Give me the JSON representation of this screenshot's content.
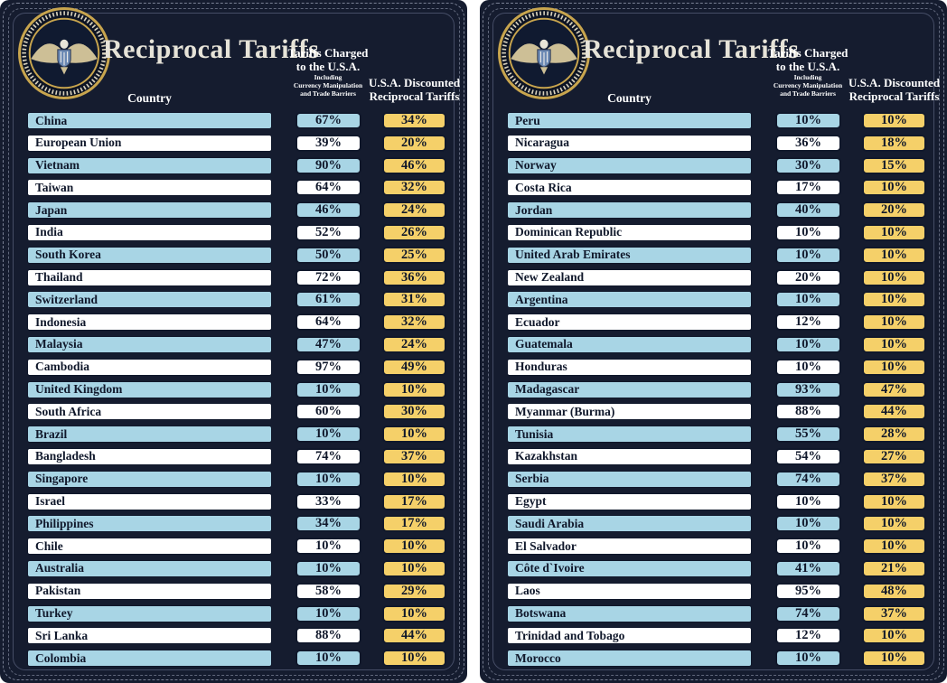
{
  "header": {
    "title": "Reciprocal Tariffs",
    "country_col": "Country",
    "charged_col_line1": "Tariffs Charged",
    "charged_col_line2": "to the U.S.A.",
    "charged_sub_line1": "Including",
    "charged_sub_line2": "Currency Manipulation",
    "charged_sub_line3": "and Trade Barriers",
    "discount_col_line1": "U.S.A. Discounted",
    "discount_col_line2": "Reciprocal Tariffs"
  },
  "colors": {
    "bg_navy": "#151c2f",
    "row_blue": "#a8d5e5",
    "row_white": "#ffffff",
    "discount_yellow": "#f5d069",
    "ink_dark": "#10182b",
    "title_cream": "#e6e3d8",
    "stitch_gray": "#8b92a6",
    "seal_gold": "#c8a54e"
  },
  "chart_data": [
    {
      "type": "table",
      "title": "Reciprocal Tariffs",
      "columns": [
        "Country",
        "Tariffs Charged to the U.S.A. Including Currency Manipulation and Trade Barriers",
        "U.S.A. Discounted Reciprocal Tariffs"
      ],
      "rows": [
        {
          "country": "China",
          "charged": "67%",
          "discount": "34%"
        },
        {
          "country": "European Union",
          "charged": "39%",
          "discount": "20%"
        },
        {
          "country": "Vietnam",
          "charged": "90%",
          "discount": "46%"
        },
        {
          "country": "Taiwan",
          "charged": "64%",
          "discount": "32%"
        },
        {
          "country": "Japan",
          "charged": "46%",
          "discount": "24%"
        },
        {
          "country": "India",
          "charged": "52%",
          "discount": "26%"
        },
        {
          "country": "South Korea",
          "charged": "50%",
          "discount": "25%"
        },
        {
          "country": "Thailand",
          "charged": "72%",
          "discount": "36%"
        },
        {
          "country": "Switzerland",
          "charged": "61%",
          "discount": "31%"
        },
        {
          "country": "Indonesia",
          "charged": "64%",
          "discount": "32%"
        },
        {
          "country": "Malaysia",
          "charged": "47%",
          "discount": "24%"
        },
        {
          "country": "Cambodia",
          "charged": "97%",
          "discount": "49%"
        },
        {
          "country": "United Kingdom",
          "charged": "10%",
          "discount": "10%"
        },
        {
          "country": "South Africa",
          "charged": "60%",
          "discount": "30%"
        },
        {
          "country": "Brazil",
          "charged": "10%",
          "discount": "10%"
        },
        {
          "country": "Bangladesh",
          "charged": "74%",
          "discount": "37%"
        },
        {
          "country": "Singapore",
          "charged": "10%",
          "discount": "10%"
        },
        {
          "country": "Israel",
          "charged": "33%",
          "discount": "17%"
        },
        {
          "country": "Philippines",
          "charged": "34%",
          "discount": "17%"
        },
        {
          "country": "Chile",
          "charged": "10%",
          "discount": "10%"
        },
        {
          "country": "Australia",
          "charged": "10%",
          "discount": "10%"
        },
        {
          "country": "Pakistan",
          "charged": "58%",
          "discount": "29%"
        },
        {
          "country": "Turkey",
          "charged": "10%",
          "discount": "10%"
        },
        {
          "country": "Sri Lanka",
          "charged": "88%",
          "discount": "44%"
        },
        {
          "country": "Colombia",
          "charged": "10%",
          "discount": "10%"
        }
      ]
    },
    {
      "type": "table",
      "title": "Reciprocal Tariffs",
      "columns": [
        "Country",
        "Tariffs Charged to the U.S.A. Including Currency Manipulation and Trade Barriers",
        "U.S.A. Discounted Reciprocal Tariffs"
      ],
      "rows": [
        {
          "country": "Peru",
          "charged": "10%",
          "discount": "10%"
        },
        {
          "country": "Nicaragua",
          "charged": "36%",
          "discount": "18%"
        },
        {
          "country": "Norway",
          "charged": "30%",
          "discount": "15%"
        },
        {
          "country": "Costa Rica",
          "charged": "17%",
          "discount": "10%"
        },
        {
          "country": "Jordan",
          "charged": "40%",
          "discount": "20%"
        },
        {
          "country": "Dominican Republic",
          "charged": "10%",
          "discount": "10%"
        },
        {
          "country": "United Arab Emirates",
          "charged": "10%",
          "discount": "10%"
        },
        {
          "country": "New Zealand",
          "charged": "20%",
          "discount": "10%"
        },
        {
          "country": "Argentina",
          "charged": "10%",
          "discount": "10%"
        },
        {
          "country": "Ecuador",
          "charged": "12%",
          "discount": "10%"
        },
        {
          "country": "Guatemala",
          "charged": "10%",
          "discount": "10%"
        },
        {
          "country": "Honduras",
          "charged": "10%",
          "discount": "10%"
        },
        {
          "country": "Madagascar",
          "charged": "93%",
          "discount": "47%"
        },
        {
          "country": "Myanmar (Burma)",
          "charged": "88%",
          "discount": "44%"
        },
        {
          "country": "Tunisia",
          "charged": "55%",
          "discount": "28%"
        },
        {
          "country": "Kazakhstan",
          "charged": "54%",
          "discount": "27%"
        },
        {
          "country": "Serbia",
          "charged": "74%",
          "discount": "37%"
        },
        {
          "country": "Egypt",
          "charged": "10%",
          "discount": "10%"
        },
        {
          "country": "Saudi Arabia",
          "charged": "10%",
          "discount": "10%"
        },
        {
          "country": "El Salvador",
          "charged": "10%",
          "discount": "10%"
        },
        {
          "country": "Côte d`Ivoire",
          "charged": "41%",
          "discount": "21%"
        },
        {
          "country": "Laos",
          "charged": "95%",
          "discount": "48%"
        },
        {
          "country": "Botswana",
          "charged": "74%",
          "discount": "37%"
        },
        {
          "country": "Trinidad and Tobago",
          "charged": "12%",
          "discount": "10%"
        },
        {
          "country": "Morocco",
          "charged": "10%",
          "discount": "10%"
        }
      ]
    }
  ]
}
